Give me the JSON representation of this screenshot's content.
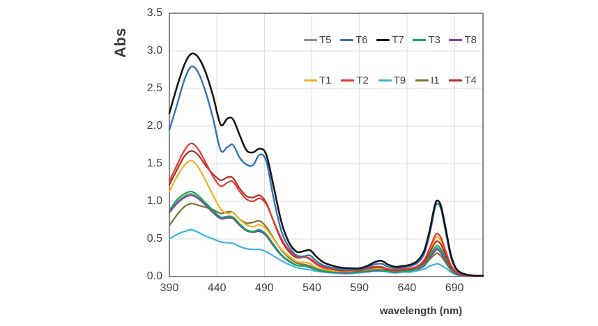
{
  "chart_data": {
    "type": "line",
    "title": "",
    "xlabel": "wavelength (nm)",
    "ylabel": "Abs",
    "xlim": [
      390,
      720
    ],
    "ylim": [
      0,
      3.5
    ],
    "grid": true,
    "legend_position": "top-right-inside",
    "x_ticks": [
      {
        "v": 390,
        "label": "390"
      },
      {
        "v": 440,
        "label": "440"
      },
      {
        "v": 490,
        "label": "490"
      },
      {
        "v": 540,
        "label": "540"
      },
      {
        "v": 590,
        "label": "590"
      },
      {
        "v": 640,
        "label": "640"
      },
      {
        "v": 690,
        "label": "690"
      }
    ],
    "y_ticks": [
      {
        "v": 0.0,
        "label": "0.0"
      },
      {
        "v": 0.5,
        "label": "0.5"
      },
      {
        "v": 1.0,
        "label": "1.0"
      },
      {
        "v": 1.5,
        "label": "1.5"
      },
      {
        "v": 2.0,
        "label": "2.0"
      },
      {
        "v": 2.5,
        "label": "2.5"
      },
      {
        "v": 3.0,
        "label": "3.0"
      },
      {
        "v": 3.5,
        "label": "3.5"
      }
    ],
    "legend_rows": [
      [
        "T5",
        "T6",
        "T7",
        "T3",
        "T8"
      ],
      [
        "T1",
        "T2",
        "T9",
        "I1",
        "T4"
      ]
    ],
    "x": [
      390,
      398,
      406,
      413,
      420,
      428,
      436,
      444,
      451,
      457,
      464,
      471,
      478,
      485,
      492,
      500,
      508,
      516,
      524,
      532,
      538,
      545,
      552,
      560,
      570,
      580,
      590,
      598,
      606,
      613,
      620,
      628,
      636,
      644,
      651,
      658,
      664,
      669,
      672,
      676,
      681,
      686,
      691,
      697,
      705,
      712,
      720
    ],
    "series": [
      {
        "name": "T5",
        "color": "#76a26d",
        "width": 2.2,
        "values": [
          0.86,
          0.99,
          1.07,
          1.1,
          1.05,
          0.96,
          0.86,
          0.78,
          0.79,
          0.78,
          0.69,
          0.61,
          0.59,
          0.61,
          0.55,
          0.41,
          0.28,
          0.2,
          0.15,
          0.14,
          0.12,
          0.09,
          0.07,
          0.06,
          0.05,
          0.05,
          0.06,
          0.07,
          0.09,
          0.09,
          0.07,
          0.06,
          0.07,
          0.08,
          0.1,
          0.15,
          0.26,
          0.35,
          0.38,
          0.33,
          0.22,
          0.1,
          0.04,
          0.02,
          0.01,
          0.0,
          0.0
        ]
      },
      {
        "name": "T9",
        "color": "#35b3e8",
        "width": 2.2,
        "values": [
          0.5,
          0.56,
          0.6,
          0.62,
          0.59,
          0.54,
          0.5,
          0.46,
          0.45,
          0.44,
          0.4,
          0.37,
          0.36,
          0.36,
          0.33,
          0.27,
          0.21,
          0.16,
          0.12,
          0.1,
          0.09,
          0.07,
          0.06,
          0.05,
          0.04,
          0.04,
          0.05,
          0.06,
          0.07,
          0.07,
          0.06,
          0.05,
          0.06,
          0.06,
          0.08,
          0.1,
          0.14,
          0.16,
          0.17,
          0.15,
          0.11,
          0.06,
          0.03,
          0.01,
          0.01,
          0.0,
          0.0
        ]
      },
      {
        "name": "I1",
        "color": "#7d7231",
        "width": 2.2,
        "values": [
          0.68,
          0.82,
          0.93,
          0.97,
          0.95,
          0.92,
          0.89,
          0.84,
          0.86,
          0.85,
          0.76,
          0.71,
          0.72,
          0.74,
          0.66,
          0.5,
          0.35,
          0.25,
          0.18,
          0.16,
          0.14,
          0.1,
          0.08,
          0.07,
          0.06,
          0.06,
          0.07,
          0.08,
          0.1,
          0.1,
          0.08,
          0.07,
          0.08,
          0.09,
          0.11,
          0.15,
          0.23,
          0.29,
          0.31,
          0.27,
          0.18,
          0.09,
          0.04,
          0.02,
          0.01,
          0.0,
          0.0
        ]
      },
      {
        "name": "T8",
        "color": "#7445a8",
        "width": 2.2,
        "values": [
          0.85,
          0.97,
          1.05,
          1.08,
          1.04,
          0.95,
          0.85,
          0.77,
          0.78,
          0.77,
          0.68,
          0.61,
          0.59,
          0.6,
          0.54,
          0.4,
          0.28,
          0.2,
          0.15,
          0.14,
          0.12,
          0.09,
          0.07,
          0.06,
          0.05,
          0.05,
          0.06,
          0.07,
          0.08,
          0.08,
          0.07,
          0.06,
          0.07,
          0.08,
          0.1,
          0.14,
          0.25,
          0.33,
          0.36,
          0.31,
          0.21,
          0.1,
          0.04,
          0.02,
          0.01,
          0.0,
          0.0
        ]
      },
      {
        "name": "T3",
        "color": "#14a85c",
        "width": 2.2,
        "values": [
          0.88,
          1.02,
          1.1,
          1.13,
          1.08,
          0.98,
          0.88,
          0.79,
          0.8,
          0.79,
          0.7,
          0.62,
          0.6,
          0.62,
          0.56,
          0.42,
          0.29,
          0.21,
          0.15,
          0.14,
          0.13,
          0.09,
          0.08,
          0.06,
          0.06,
          0.06,
          0.06,
          0.08,
          0.09,
          0.09,
          0.07,
          0.07,
          0.07,
          0.08,
          0.11,
          0.16,
          0.28,
          0.38,
          0.41,
          0.36,
          0.24,
          0.11,
          0.05,
          0.02,
          0.01,
          0.0,
          0.0
        ]
      },
      {
        "name": "T1",
        "color": "#f2b01e",
        "width": 2.2,
        "values": [
          1.13,
          1.33,
          1.48,
          1.54,
          1.46,
          1.28,
          1.08,
          0.9,
          0.84,
          0.85,
          0.76,
          0.69,
          0.66,
          0.69,
          0.63,
          0.49,
          0.36,
          0.27,
          0.2,
          0.19,
          0.17,
          0.12,
          0.1,
          0.08,
          0.07,
          0.07,
          0.08,
          0.09,
          0.11,
          0.11,
          0.09,
          0.08,
          0.09,
          0.1,
          0.13,
          0.2,
          0.36,
          0.49,
          0.53,
          0.47,
          0.31,
          0.15,
          0.06,
          0.03,
          0.01,
          0.01,
          0.0
        ]
      },
      {
        "name": "T4",
        "color": "#b02c24",
        "width": 2.2,
        "values": [
          1.22,
          1.42,
          1.6,
          1.67,
          1.62,
          1.48,
          1.36,
          1.28,
          1.32,
          1.31,
          1.17,
          1.07,
          1.05,
          1.08,
          0.98,
          0.72,
          0.48,
          0.33,
          0.25,
          0.26,
          0.23,
          0.16,
          0.12,
          0.1,
          0.08,
          0.08,
          0.08,
          0.1,
          0.12,
          0.12,
          0.09,
          0.08,
          0.09,
          0.1,
          0.13,
          0.19,
          0.32,
          0.44,
          0.47,
          0.42,
          0.28,
          0.13,
          0.06,
          0.02,
          0.01,
          0.0,
          0.0
        ]
      },
      {
        "name": "T2",
        "color": "#e8382d",
        "width": 2.2,
        "values": [
          1.27,
          1.48,
          1.68,
          1.77,
          1.7,
          1.52,
          1.33,
          1.2,
          1.25,
          1.26,
          1.13,
          1.03,
          1.0,
          1.04,
          0.96,
          0.73,
          0.5,
          0.35,
          0.26,
          0.26,
          0.24,
          0.17,
          0.13,
          0.1,
          0.09,
          0.08,
          0.09,
          0.11,
          0.13,
          0.13,
          0.1,
          0.09,
          0.1,
          0.11,
          0.14,
          0.22,
          0.38,
          0.53,
          0.57,
          0.51,
          0.33,
          0.16,
          0.07,
          0.03,
          0.01,
          0.01,
          0.0
        ]
      },
      {
        "name": "T6",
        "color": "#2e75b6",
        "width": 2.4,
        "values": [
          1.95,
          2.28,
          2.62,
          2.79,
          2.72,
          2.46,
          2.1,
          1.68,
          1.72,
          1.75,
          1.58,
          1.49,
          1.48,
          1.62,
          1.53,
          1.02,
          0.6,
          0.39,
          0.28,
          0.27,
          0.28,
          0.2,
          0.15,
          0.12,
          0.1,
          0.09,
          0.1,
          0.12,
          0.16,
          0.17,
          0.13,
          0.11,
          0.12,
          0.14,
          0.18,
          0.3,
          0.57,
          0.89,
          0.97,
          0.89,
          0.58,
          0.27,
          0.11,
          0.04,
          0.02,
          0.01,
          0.01
        ]
      },
      {
        "name": "T7",
        "color": "#151515",
        "width": 2.6,
        "values": [
          2.17,
          2.52,
          2.82,
          2.96,
          2.92,
          2.72,
          2.4,
          2.02,
          2.1,
          2.09,
          1.88,
          1.68,
          1.65,
          1.7,
          1.62,
          1.18,
          0.72,
          0.45,
          0.33,
          0.34,
          0.35,
          0.26,
          0.19,
          0.15,
          0.12,
          0.11,
          0.11,
          0.14,
          0.19,
          0.21,
          0.16,
          0.13,
          0.14,
          0.16,
          0.21,
          0.34,
          0.62,
          0.93,
          1.01,
          0.93,
          0.62,
          0.3,
          0.12,
          0.05,
          0.02,
          0.01,
          0.01
        ]
      }
    ],
    "colors": {
      "grid": "#dcdcdc",
      "plot_border": "#595959",
      "tick_text": "#3f3f3f",
      "axis_title_text": "#3b3b3b",
      "background": "#ffffff"
    }
  }
}
